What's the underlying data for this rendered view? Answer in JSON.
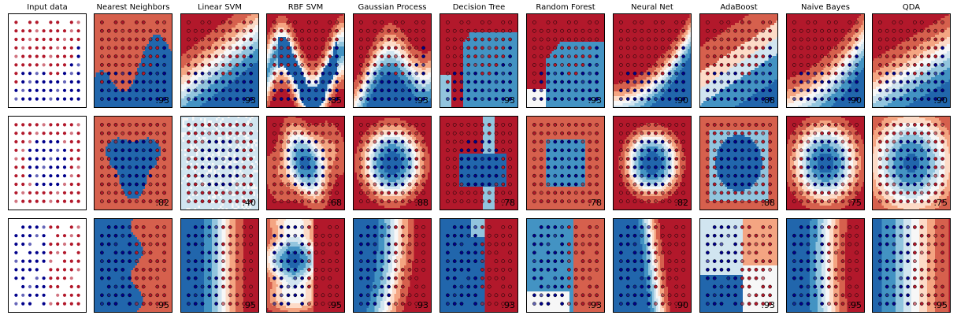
{
  "columns": [
    "Input data",
    "Nearest Neighbors",
    "Linear SVM",
    "RBF SVM",
    "Gaussian Process",
    "Decision Tree",
    "Random Forest",
    "Neural Net",
    "AdaBoost",
    "Naive Bayes",
    "QDA"
  ],
  "colors": {
    "class0": "#b2182b",
    "class0_face": "#d6604d",
    "class1": "#2166ac",
    "class1_face": "#00008b",
    "cmap": [
      "#2166ac",
      "#4393c3",
      "#92c5de",
      "#d1e5f0",
      "#f7f7f7",
      "#fddbc7",
      "#f4a582",
      "#d6604d",
      "#b2182b"
    ]
  },
  "chart_data": [
    {
      "type": "scatter",
      "dataset": "moons",
      "scores": [
        "",
        ".93",
        ".93",
        ".85",
        ".93",
        ".93",
        ".93",
        ".90",
        ".88",
        ".90",
        ".90"
      ]
    },
    {
      "type": "scatter",
      "dataset": "circles",
      "scores": [
        "",
        ".82",
        ".40",
        ".68",
        ".88",
        ".78",
        ".78",
        ".82",
        ".88",
        ".75",
        ".75"
      ]
    },
    {
      "type": "scatter",
      "dataset": "linear",
      "scores": [
        "",
        ".95",
        ".95",
        ".95",
        ".93",
        ".93",
        ".93",
        ".90",
        ".93",
        ".95",
        ".95"
      ]
    }
  ]
}
